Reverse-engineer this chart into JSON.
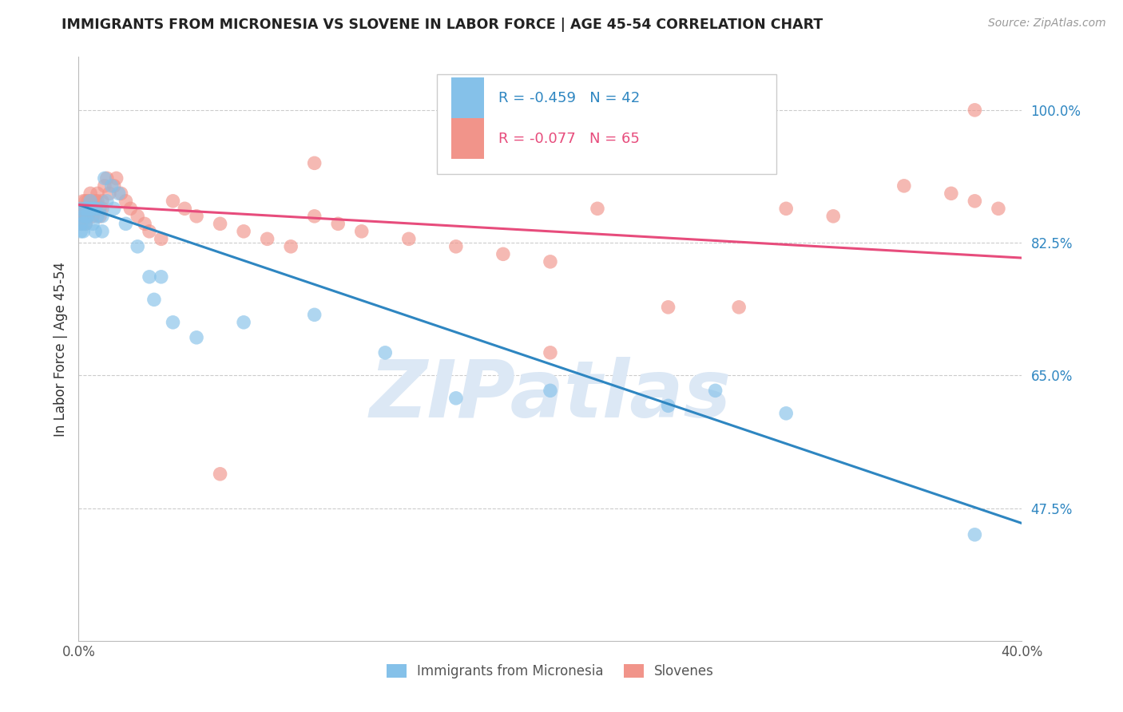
{
  "title": "IMMIGRANTS FROM MICRONESIA VS SLOVENE IN LABOR FORCE | AGE 45-54 CORRELATION CHART",
  "source": "Source: ZipAtlas.com",
  "ylabel": "In Labor Force | Age 45-54",
  "blue_label": "Immigrants from Micronesia",
  "pink_label": "Slovenes",
  "blue_R": -0.459,
  "blue_N": 42,
  "pink_R": -0.077,
  "pink_N": 65,
  "blue_color": "#85c1e9",
  "pink_color": "#f1948a",
  "blue_line_color": "#2e86c1",
  "pink_line_color": "#e74c7c",
  "watermark": "ZIPatlas",
  "watermark_color": "#dce8f5",
  "grid_color": "#cccccc",
  "x_min": 0.0,
  "x_max": 0.4,
  "y_min": 0.3,
  "y_max": 1.07,
  "y_ticks": [
    0.475,
    0.65,
    0.825,
    1.0
  ],
  "y_tick_labels": [
    "47.5%",
    "65.0%",
    "82.5%",
    "100.0%"
  ],
  "x_ticks": [
    0.0,
    0.08,
    0.16,
    0.24,
    0.32,
    0.4
  ],
  "x_tick_labels": [
    "0.0%",
    "",
    "",
    "",
    "",
    "40.0%"
  ],
  "blue_trend_x": [
    0.0,
    0.4
  ],
  "blue_trend_y": [
    0.875,
    0.455
  ],
  "pink_trend_x": [
    0.0,
    0.4
  ],
  "pink_trend_y": [
    0.875,
    0.805
  ],
  "blue_scatter_x": [
    0.001,
    0.001,
    0.001,
    0.002,
    0.002,
    0.002,
    0.003,
    0.003,
    0.003,
    0.004,
    0.004,
    0.005,
    0.005,
    0.006,
    0.006,
    0.007,
    0.007,
    0.008,
    0.009,
    0.01,
    0.01,
    0.011,
    0.012,
    0.014,
    0.015,
    0.017,
    0.02,
    0.025,
    0.03,
    0.032,
    0.035,
    0.04,
    0.05,
    0.07,
    0.1,
    0.13,
    0.16,
    0.2,
    0.25,
    0.27,
    0.3,
    0.38
  ],
  "blue_scatter_y": [
    0.87,
    0.85,
    0.84,
    0.86,
    0.85,
    0.84,
    0.87,
    0.86,
    0.85,
    0.87,
    0.86,
    0.88,
    0.87,
    0.87,
    0.85,
    0.87,
    0.84,
    0.86,
    0.87,
    0.86,
    0.84,
    0.91,
    0.88,
    0.9,
    0.87,
    0.89,
    0.85,
    0.82,
    0.78,
    0.75,
    0.78,
    0.72,
    0.7,
    0.72,
    0.73,
    0.68,
    0.62,
    0.63,
    0.61,
    0.63,
    0.6,
    0.44
  ],
  "pink_scatter_x": [
    0.001,
    0.001,
    0.001,
    0.002,
    0.002,
    0.002,
    0.003,
    0.003,
    0.003,
    0.003,
    0.004,
    0.004,
    0.004,
    0.005,
    0.005,
    0.005,
    0.006,
    0.006,
    0.007,
    0.007,
    0.008,
    0.008,
    0.009,
    0.009,
    0.01,
    0.01,
    0.011,
    0.012,
    0.013,
    0.015,
    0.016,
    0.018,
    0.02,
    0.022,
    0.025,
    0.028,
    0.03,
    0.035,
    0.04,
    0.045,
    0.05,
    0.06,
    0.07,
    0.08,
    0.09,
    0.1,
    0.11,
    0.12,
    0.14,
    0.16,
    0.18,
    0.2,
    0.22,
    0.25,
    0.28,
    0.3,
    0.32,
    0.35,
    0.37,
    0.38,
    0.39,
    0.1,
    0.2,
    0.38,
    0.06
  ],
  "pink_scatter_y": [
    0.87,
    0.86,
    0.85,
    0.88,
    0.87,
    0.86,
    0.88,
    0.87,
    0.86,
    0.85,
    0.88,
    0.87,
    0.86,
    0.89,
    0.88,
    0.87,
    0.87,
    0.86,
    0.88,
    0.87,
    0.89,
    0.88,
    0.87,
    0.86,
    0.88,
    0.87,
    0.9,
    0.91,
    0.89,
    0.9,
    0.91,
    0.89,
    0.88,
    0.87,
    0.86,
    0.85,
    0.84,
    0.83,
    0.88,
    0.87,
    0.86,
    0.85,
    0.84,
    0.83,
    0.82,
    0.86,
    0.85,
    0.84,
    0.83,
    0.82,
    0.81,
    0.8,
    0.87,
    0.74,
    0.74,
    0.87,
    0.86,
    0.9,
    0.89,
    0.88,
    0.87,
    0.93,
    0.68,
    1.0,
    0.52
  ]
}
